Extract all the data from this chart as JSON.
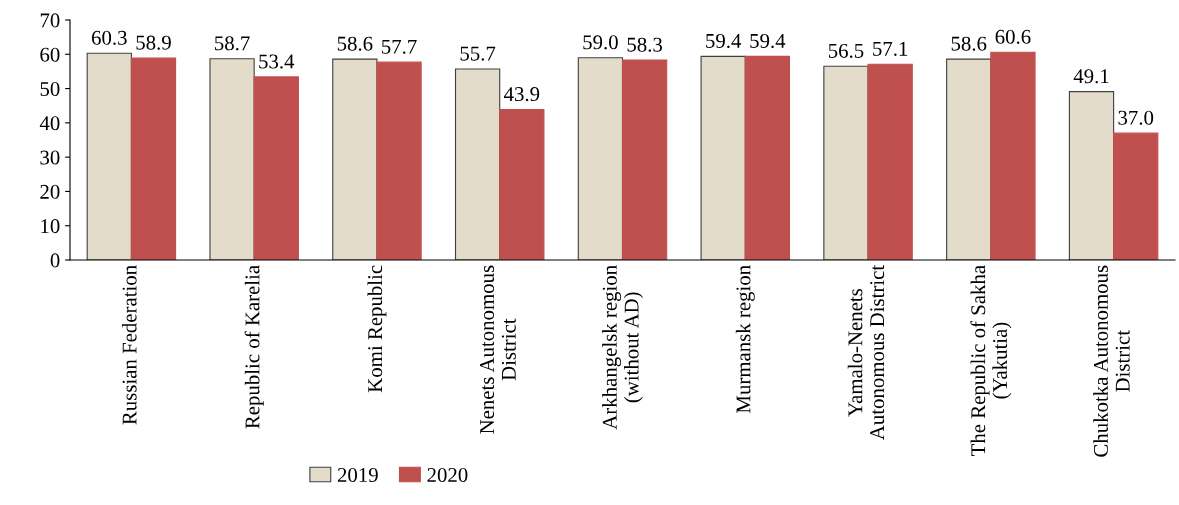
{
  "chart_data": {
    "type": "bar",
    "categories": [
      "Russian Federation",
      "Republic of Karelia",
      "Komi Republic",
      "Nenets Autonomous\nDistrict",
      "Arkhangelsk region\n(without AD)",
      "Murmansk region",
      "Yamalo-Nenets\nAutonomous District",
      "The Republic of Sakha\n(Yakutia)",
      "Chukotka Autonomous\nDistrict"
    ],
    "series": [
      {
        "name": "2019",
        "color": "#e3dccb",
        "values": [
          60.3,
          58.7,
          58.6,
          55.7,
          59.0,
          59.4,
          56.5,
          58.6,
          49.1
        ],
        "value_labels": [
          "60.3",
          "58.7",
          "58.6",
          "55.7",
          "59.0",
          "59.4",
          "56.5",
          "58.6",
          "49.1"
        ]
      },
      {
        "name": "2020",
        "color": "#c0504d",
        "values": [
          58.9,
          53.4,
          57.7,
          43.9,
          58.3,
          59.4,
          57.1,
          60.6,
          37.0
        ],
        "value_labels": [
          "58.9",
          "53.4",
          "57.7",
          "43.9",
          "58.3",
          "59.4",
          "57.1",
          "60.6",
          "37.0"
        ]
      }
    ],
    "ylim": [
      0,
      70
    ],
    "yticks": [
      0,
      10,
      20,
      30,
      40,
      50,
      60,
      70
    ],
    "grid": false,
    "legend": "bottom"
  }
}
